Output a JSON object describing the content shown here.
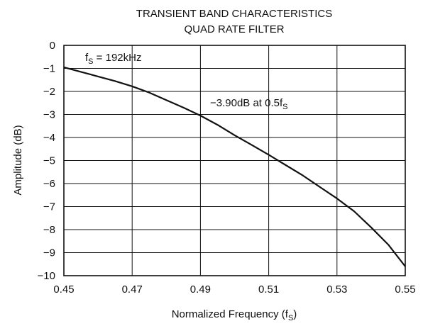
{
  "chart_data": {
    "type": "line",
    "title": "TRANSIENT BAND CHARACTERISTICS",
    "subtitle": "QUAD RATE FILTER",
    "xlabel": {
      "main": "Normalized Frequency (f",
      "sub": "S",
      "close": ")"
    },
    "ylabel": "Amplitude (dB)",
    "xlim": [
      0.45,
      0.55
    ],
    "ylim": [
      -10,
      0
    ],
    "x_ticks": [
      "0.45",
      "0.47",
      "0.49",
      "0.51",
      "0.53",
      "0.55"
    ],
    "y_ticks": [
      "0",
      "−1",
      "−2",
      "−3",
      "−4",
      "−5",
      "−6",
      "−7",
      "−8",
      "−9",
      "−10"
    ],
    "grid": true,
    "annotations": [
      {
        "main": "f",
        "sub": "S",
        "rest": " = 192kHz"
      },
      {
        "main": "−3.90dB at 0.5f",
        "sub": "S",
        "rest": ""
      }
    ],
    "series": [
      {
        "color": "#111111",
        "x": [
          0.45,
          0.455,
          0.46,
          0.465,
          0.47,
          0.475,
          0.48,
          0.485,
          0.49,
          0.495,
          0.5,
          0.505,
          0.51,
          0.515,
          0.52,
          0.525,
          0.53,
          0.535,
          0.54,
          0.545,
          0.55
        ],
        "y": [
          -0.95,
          -1.15,
          -1.35,
          -1.55,
          -1.78,
          -2.05,
          -2.38,
          -2.7,
          -3.05,
          -3.45,
          -3.9,
          -4.32,
          -4.75,
          -5.2,
          -5.65,
          -6.15,
          -6.65,
          -7.2,
          -7.9,
          -8.65,
          -9.6
        ]
      }
    ]
  }
}
